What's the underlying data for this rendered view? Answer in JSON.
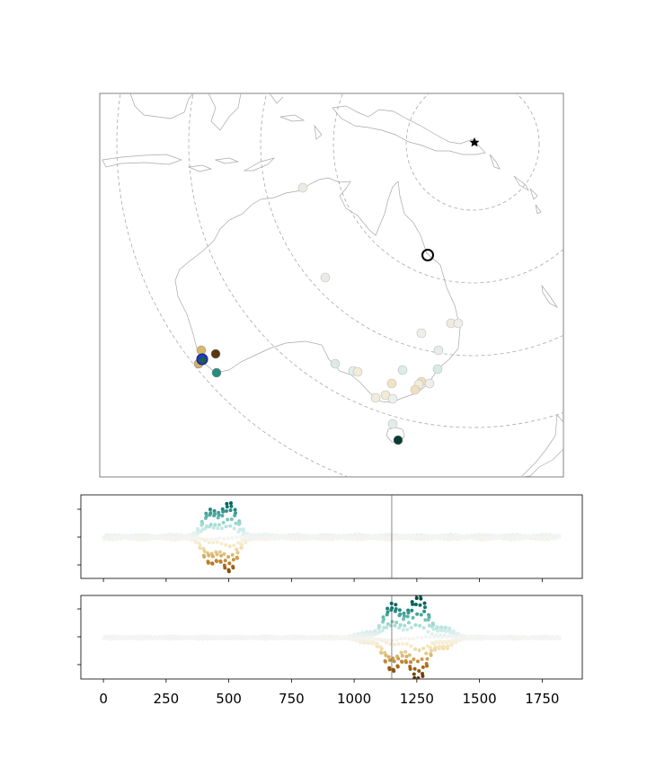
{
  "chart_data": [
    {
      "type": "scatter",
      "subtype": "map",
      "title": "",
      "xlabel": "",
      "ylabel": "",
      "grid": false,
      "legend": "none",
      "colormap": "BrBG",
      "markers": {
        "source": {
          "symbol": "star",
          "color": "#000000"
        },
        "reference": {
          "symbol": "open-circle",
          "color": "#000000"
        },
        "highlight": {
          "symbol": "filled-circle",
          "color": "#1f3fbf"
        }
      },
      "distance_rings": {
        "style": "dashed",
        "color": "#aaaaaa",
        "count": 5
      },
      "stations_colored": [
        "#d9b86a",
        "#c9a45e",
        "#5a3712",
        "#2a8c7e",
        "#1f5f3a",
        "#0b3d33"
      ],
      "stations_faint_count": 24
    },
    {
      "type": "line",
      "series": [
        {
          "name": "",
          "style": "waveform",
          "colormap": "BrBG"
        }
      ],
      "xlim": [
        -90,
        1910
      ],
      "x_ticks": [
        0,
        250,
        500,
        750,
        1000,
        1250,
        1500,
        1750
      ],
      "x_tick_labels_visible": false,
      "y_tick_labels_visible": false,
      "vline_x": 1150,
      "signal_window": [
        380,
        560
      ],
      "trace_end": 1820
    },
    {
      "type": "line",
      "series": [
        {
          "name": "",
          "style": "waveform",
          "colormap": "BrBG"
        }
      ],
      "xlim": [
        -90,
        1910
      ],
      "x_ticks": [
        0,
        250,
        500,
        750,
        1000,
        1250,
        1500,
        1750
      ],
      "x_tick_labels": [
        "0",
        "250",
        "500",
        "750",
        "1000",
        "1250",
        "1500",
        "1750"
      ],
      "y_tick_labels_visible": false,
      "vline_x": 1150,
      "signal_window": [
        1060,
        1380
      ],
      "trace_end": 1820
    }
  ]
}
